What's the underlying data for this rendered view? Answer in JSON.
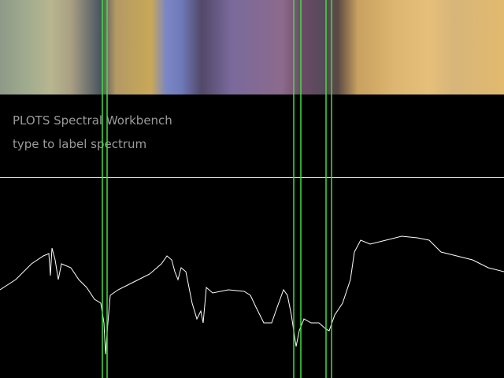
{
  "header": {
    "title": "PLOTS Spectral Workbench",
    "subtitle": "type to label spectrum"
  }
}
